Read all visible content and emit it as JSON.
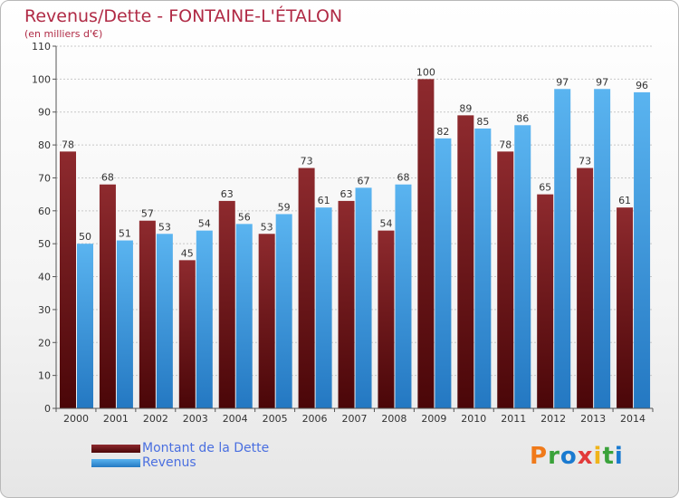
{
  "title": "Revenus/Dette - FONTAINE-L'ÉTALON",
  "subtitle": "(en milliers d'€)",
  "logo": "Proxiti",
  "colors": {
    "debt": "#7a1a1e",
    "debt_dark": "#4a0608",
    "revenue": "#49a7ea",
    "revenue_dark": "#2478c2",
    "title": "#b02a45",
    "legend_text": "#4a6fe0"
  },
  "chart_data": {
    "type": "bar",
    "title": "Revenus/Dette - FONTAINE-L'ÉTALON",
    "subtitle": "(en milliers d'€)",
    "categories": [
      "2000",
      "2001",
      "2002",
      "2003",
      "2004",
      "2005",
      "2006",
      "2007",
      "2008",
      "2009",
      "2010",
      "2011",
      "2012",
      "2013",
      "2014"
    ],
    "series": [
      {
        "name": "Montant de la Dette",
        "values": [
          78,
          68,
          57,
          45,
          63,
          53,
          73,
          63,
          54,
          100,
          89,
          78,
          65,
          73,
          61
        ]
      },
      {
        "name": "Revenus",
        "values": [
          50,
          51,
          53,
          54,
          56,
          59,
          61,
          67,
          68,
          82,
          85,
          86,
          97,
          97,
          96
        ]
      }
    ],
    "yticks": [
      "0",
      "10",
      "20",
      "30",
      "40",
      "50",
      "60",
      "70",
      "80",
      "90",
      "100",
      "110"
    ],
    "ylim": [
      0,
      110
    ],
    "grid": true,
    "legend": "bottom-left"
  }
}
